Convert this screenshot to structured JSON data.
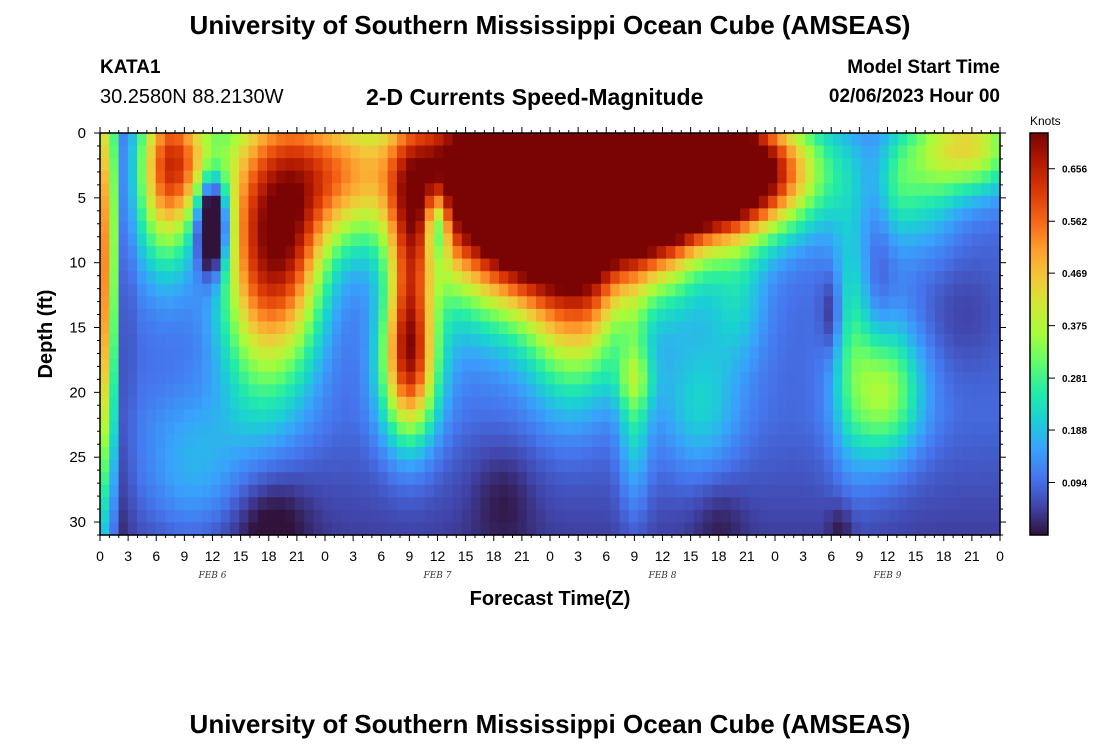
{
  "header": {
    "title": "University of Southern Mississippi Ocean Cube (AMSEAS)",
    "station": "KATA1",
    "coords": "30.2580N  88.2130W",
    "subtitle": "2-D Currents Speed-Magnitude",
    "model_label": "Model Start Time",
    "model_date": "02/06/2023 Hour 00"
  },
  "footer": {
    "title": "University of Southern Mississippi Ocean Cube (AMSEAS)"
  },
  "chart_data": {
    "type": "heatmap",
    "xlabel": "Forecast Time(Z)",
    "ylabel": "Depth (ft)",
    "xlim": [
      0,
      96
    ],
    "ylim": [
      0,
      31
    ],
    "y_inverted": true,
    "x_tick_labels": [
      "0",
      "3",
      "6",
      "9",
      "12",
      "15",
      "18",
      "21",
      "0",
      "3",
      "6",
      "9",
      "12",
      "15",
      "18",
      "21",
      "0",
      "3",
      "6",
      "9",
      "12",
      "15",
      "18",
      "21",
      "0",
      "3",
      "6",
      "9",
      "12",
      "15",
      "18",
      "21",
      "0"
    ],
    "day_labels": [
      {
        "label": "FEB 6",
        "hour": 12
      },
      {
        "label": "FEB 7",
        "hour": 36
      },
      {
        "label": "FEB 8",
        "hour": 60
      },
      {
        "label": "FEB 9",
        "hour": 84
      }
    ],
    "y_ticks": [
      0,
      5,
      10,
      15,
      20,
      25,
      30
    ],
    "colorbar": {
      "label": "Knots",
      "min": 0.0,
      "max": 0.72,
      "ticks": [
        "0.094",
        "0.188",
        "0.281",
        "0.375",
        "0.469",
        "0.562",
        "0.656"
      ],
      "colors": [
        "#30123b",
        "#4145ab",
        "#4675ed",
        "#39a2fc",
        "#1bcfd4",
        "#24eca6",
        "#61fc6c",
        "#a4fc3b",
        "#d1e834",
        "#f3c63a",
        "#fe9b2d",
        "#f36315",
        "#d93806",
        "#b11901",
        "#7a0403"
      ]
    },
    "grid": false
  }
}
